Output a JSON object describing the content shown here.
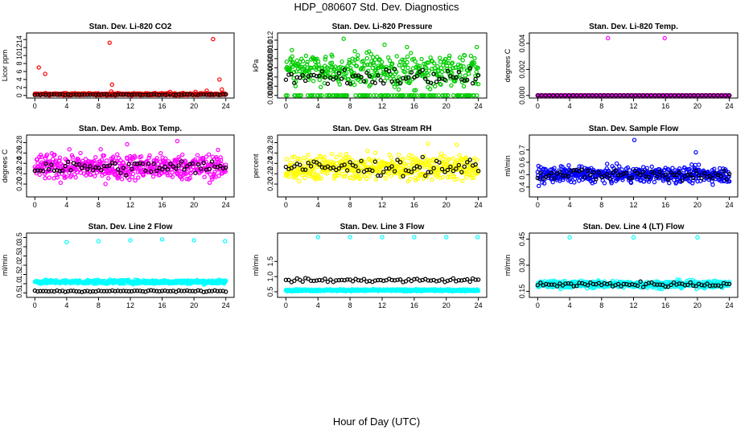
{
  "title": "HDP_080607  Std. Dev. Diagnostics",
  "xlabel": "Hour of Day (UTC)",
  "chart_data": [
    {
      "type": "scatter",
      "title": "Stan. Dev. Li-820 CO2",
      "ylabel": "Licor ppm",
      "color": "#ff0000",
      "xlim": [
        0,
        24
      ],
      "ylim": [
        0,
        15
      ],
      "yticks": [
        "0",
        "2",
        "4",
        "6",
        "8",
        "10",
        "12",
        "14"
      ],
      "ytick_values": [
        0,
        2,
        4,
        6,
        8,
        10,
        12,
        14
      ],
      "xticks": [
        "0",
        "4",
        "8",
        "12",
        "16",
        "20",
        "24"
      ],
      "outliers": [
        [
          0.5,
          7.0
        ],
        [
          1.3,
          5.4
        ],
        [
          9.4,
          13.2
        ],
        [
          22.4,
          14.1
        ],
        [
          23.2,
          4.0
        ],
        [
          9.7,
          2.7
        ],
        [
          23.5,
          1.5
        ],
        [
          9.6,
          1.0
        ],
        [
          17.0,
          0.9
        ],
        [
          20.2,
          0.9
        ],
        [
          21.6,
          1.2
        ]
      ],
      "main_band": [
        0.3,
        0.25
      ],
      "black_band": [
        0.2,
        0.1
      ],
      "black_count": 70
    },
    {
      "type": "scatter",
      "title": "Stan. Dev. Li-820 Pressure",
      "ylabel": "kPa",
      "color": "#00cc00",
      "xlim": [
        0,
        24
      ],
      "ylim": [
        0,
        0.013
      ],
      "yticks": [
        "0.000",
        "0.002",
        "0.004",
        "0.006",
        "0.008",
        "0.010",
        "0.012"
      ],
      "ytick_values": [
        0,
        0.002,
        0.004,
        0.006,
        0.008,
        0.01,
        0.012
      ],
      "xticks": [
        "0",
        "4",
        "8",
        "12",
        "16",
        "20",
        "24"
      ],
      "outliers": [
        [
          7.2,
          0.0123
        ],
        [
          23.8,
          0.0105
        ],
        [
          12.3,
          0.011
        ],
        [
          15.1,
          0.0105
        ]
      ],
      "main_band": [
        0.0055,
        0.0035
      ],
      "black_band": [
        0.004,
        0.002
      ],
      "black_count": 70
    },
    {
      "type": "scatter",
      "title": "Stan. Dev. Li-820 Temp.",
      "ylabel": "degrees C",
      "color": "#ff00ff",
      "xlim": [
        0,
        24
      ],
      "ylim": [
        0,
        0.0046
      ],
      "yticks": [
        "0.000",
        "0.002",
        "0.004"
      ],
      "ytick_values": [
        0,
        0.002,
        0.004
      ],
      "xticks": [
        "0",
        "4",
        "8",
        "12",
        "16",
        "20",
        "24"
      ],
      "outliers": [
        [
          8.8,
          0.0044
        ],
        [
          15.9,
          0.0044
        ]
      ],
      "main_band": [
        0,
        0
      ],
      "black_band": [
        0,
        0
      ],
      "black_count": 50
    },
    {
      "type": "scatter",
      "title": "Stan. Dev. Amb. Box Temp.",
      "ylabel": "degrees C",
      "color": "#ff00ff",
      "xlim": [
        0,
        24
      ],
      "ylim": [
        0.18,
        0.29
      ],
      "yticks": [
        "0.20",
        "0.22",
        "0.24",
        "0.26",
        "0.28"
      ],
      "ytick_values": [
        0.2,
        0.22,
        0.24,
        0.26,
        0.28
      ],
      "xticks": [
        "0",
        "4",
        "8",
        "12",
        "16",
        "20",
        "24"
      ],
      "outliers": [
        [
          11.6,
          0.277
        ],
        [
          17.9,
          0.283
        ]
      ],
      "main_band": [
        0.233,
        0.024
      ],
      "black_band": [
        0.232,
        0.014
      ],
      "black_count": 70
    },
    {
      "type": "scatter",
      "title": "Stan. Dev. Gas Stream RH",
      "ylabel": "percent",
      "color": "#ffff00",
      "xlim": [
        0,
        24
      ],
      "ylim": [
        0.18,
        0.29
      ],
      "yticks": [
        "0.20",
        "0.22",
        "0.24",
        "0.26",
        "0.28"
      ],
      "ytick_values": [
        0.2,
        0.22,
        0.24,
        0.26,
        0.28
      ],
      "xticks": [
        "0",
        "4",
        "8",
        "12",
        "16",
        "20",
        "24"
      ],
      "outliers": [
        [
          17.7,
          0.278
        ],
        [
          21.3,
          0.276
        ]
      ],
      "main_band": [
        0.232,
        0.024
      ],
      "black_band": [
        0.232,
        0.016
      ],
      "black_count": 70
    },
    {
      "type": "scatter",
      "title": "Stan. Dev. Sample Flow",
      "ylabel": "ml/min",
      "color": "#0000ff",
      "xlim": [
        0,
        24
      ],
      "ylim": [
        0.34,
        0.8
      ],
      "yticks": [
        "0.4",
        "0.5",
        "0.6",
        "0.7"
      ],
      "ytick_values": [
        0.4,
        0.5,
        0.6,
        0.7
      ],
      "xticks": [
        "0",
        "4",
        "8",
        "12",
        "16",
        "20",
        "24"
      ],
      "outliers": [
        [
          12.1,
          0.78
        ],
        [
          19.8,
          0.68
        ]
      ],
      "main_band": [
        0.5,
        0.06
      ],
      "black_band": [
        0.5,
        0.05
      ],
      "black_count": 70
    },
    {
      "type": "scatter",
      "title": "Stan. Dev. Line 2 Flow",
      "ylabel": "ml/min",
      "color": "#00ffff",
      "xlim": [
        0,
        24
      ],
      "ylim": [
        0.4,
        3.6
      ],
      "yticks": [
        "0.5",
        "1.0",
        "1.5",
        "2.0",
        "2.5",
        "3.0",
        "3.5"
      ],
      "ytick_values": [
        0.5,
        1.0,
        1.5,
        2.0,
        2.5,
        3.0,
        3.5
      ],
      "xticks": [
        "0",
        "4",
        "8",
        "12",
        "16",
        "20",
        "24"
      ],
      "outliers": [
        [
          4.0,
          3.25
        ],
        [
          8.0,
          3.3
        ],
        [
          12.0,
          3.35
        ],
        [
          16.0,
          3.4
        ],
        [
          20.0,
          3.35
        ],
        [
          23.9,
          3.3
        ]
      ],
      "main_band": [
        1.1,
        0.1
      ],
      "black_band": [
        0.6,
        0.04
      ],
      "black_count": 70
    },
    {
      "type": "scatter",
      "title": "Stan. Dev. Line 3 Flow",
      "ylabel": "ml/min",
      "color": "#00ffff",
      "xlim": [
        0,
        24
      ],
      "ylim": [
        0.4,
        2.35
      ],
      "yticks": [
        "0.5",
        "1.0",
        "1.5"
      ],
      "ytick_values": [
        0.5,
        1.0,
        1.5
      ],
      "xticks": [
        "0",
        "4",
        "8",
        "12",
        "16",
        "20",
        "24"
      ],
      "outliers": [
        [
          4.0,
          2.3
        ],
        [
          8.0,
          2.3
        ],
        [
          12.0,
          2.3
        ],
        [
          16.0,
          2.3
        ],
        [
          20.0,
          2.3
        ],
        [
          23.9,
          2.3
        ]
      ],
      "main_band": [
        0.55,
        0.03
      ],
      "black_band": [
        0.88,
        0.06
      ],
      "black_count": 70
    },
    {
      "type": "scatter",
      "title": "Stan. Dev. Line 4 (LT) Flow",
      "ylabel": "ml/min",
      "color": "#00ffff",
      "xlim": [
        0,
        24
      ],
      "ylim": [
        0.13,
        0.47
      ],
      "yticks": [
        "0.15",
        "0.30",
        "0.45"
      ],
      "ytick_values": [
        0.15,
        0.3,
        0.45
      ],
      "xticks": [
        "0",
        "4",
        "8",
        "12",
        "16",
        "20",
        "24"
      ],
      "outliers": [
        [
          4.0,
          0.46
        ],
        [
          12.0,
          0.46
        ],
        [
          20.0,
          0.46
        ]
      ],
      "main_band": [
        0.19,
        0.02
      ],
      "black_band": [
        0.19,
        0.015
      ],
      "black_count": 70
    }
  ]
}
